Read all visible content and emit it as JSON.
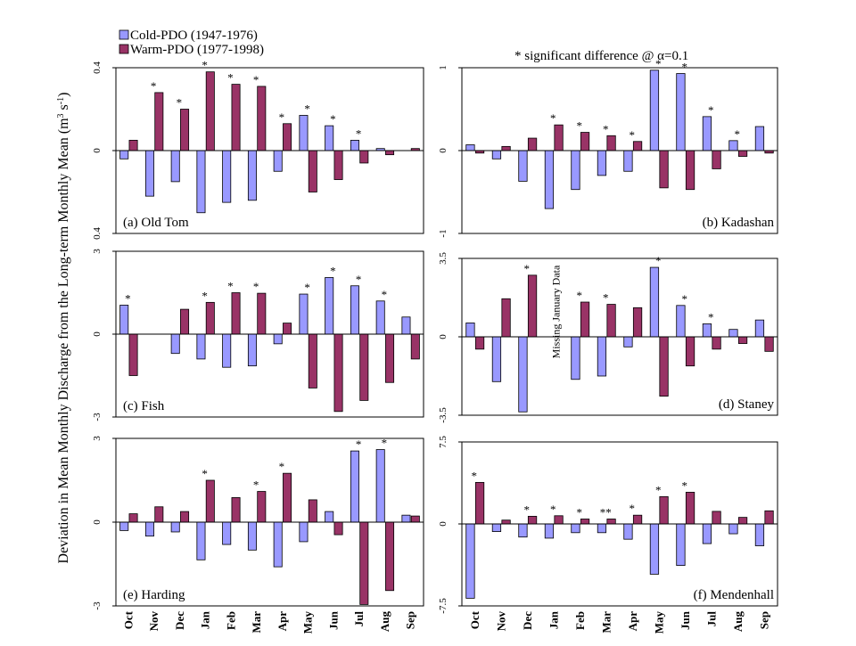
{
  "chart_data": {
    "type": "bar",
    "ylabel_main": "Deviation in Mean Monthly Discharge from the Long-term Monthly Mean (m",
    "ylabel_sup": "3",
    "ylabel_mid": " s",
    "ylabel_sup2": "-1",
    "ylabel_end": ")",
    "legend": [
      {
        "name": "Cold-PDO (1947-1976)",
        "color": "#9999ff"
      },
      {
        "name": "Warm-PDO (1977-1998)",
        "color": "#993366"
      }
    ],
    "significance_note": "* significant difference @ α=0.1",
    "months": [
      "Oct",
      "Nov",
      "Dec",
      "Jan",
      "Feb",
      "Mar",
      "Apr",
      "May",
      "Jun",
      "Jul",
      "Aug",
      "Sep"
    ],
    "panels": [
      {
        "label": "(a) Old Tom",
        "ylim": [
          -0.4,
          0.4
        ],
        "yticks": [
          "0.4",
          "0",
          "0.4"
        ],
        "cold": [
          -0.04,
          -0.22,
          -0.15,
          -0.3,
          -0.25,
          -0.24,
          -0.1,
          0.17,
          0.12,
          0.05,
          0.01,
          0.0
        ],
        "warm": [
          0.05,
          0.28,
          0.2,
          0.38,
          0.32,
          0.31,
          0.13,
          -0.2,
          -0.14,
          -0.06,
          -0.02,
          0.01
        ],
        "sig": [
          false,
          true,
          true,
          true,
          true,
          true,
          true,
          true,
          true,
          true,
          false,
          false
        ]
      },
      {
        "label": "(b) Kadashan",
        "ylim": [
          -1,
          1
        ],
        "yticks": [
          "1",
          "0",
          "-1"
        ],
        "cold": [
          0.07,
          -0.1,
          -0.37,
          -0.7,
          -0.47,
          -0.3,
          -0.25,
          0.97,
          0.93,
          0.41,
          0.12,
          0.29
        ],
        "warm": [
          -0.03,
          0.05,
          0.15,
          0.31,
          0.22,
          0.18,
          0.11,
          -0.45,
          -0.47,
          -0.22,
          -0.07,
          -0.03
        ],
        "sig": [
          false,
          false,
          false,
          true,
          true,
          true,
          true,
          true,
          true,
          true,
          true,
          false
        ]
      },
      {
        "label": "(c) Fish",
        "ylim": [
          -3,
          3
        ],
        "yticks": [
          "3",
          "0",
          "-3"
        ],
        "cold": [
          1.05,
          0.0,
          -0.7,
          -0.9,
          -1.2,
          -1.15,
          -0.35,
          1.45,
          2.05,
          1.75,
          1.2,
          0.62
        ],
        "warm": [
          -1.5,
          0.0,
          0.9,
          1.15,
          1.5,
          1.48,
          0.4,
          -1.95,
          -2.8,
          -2.4,
          -1.75,
          -0.9
        ],
        "sig": [
          true,
          false,
          false,
          true,
          true,
          true,
          false,
          true,
          true,
          true,
          true,
          false
        ]
      },
      {
        "label": "(d) Staney",
        "ylim": [
          -3.5,
          3.5
        ],
        "yticks": [
          "3.5",
          "0",
          "-3.5"
        ],
        "cold": [
          0.62,
          -2.0,
          -3.35,
          null,
          -1.9,
          -1.75,
          -0.45,
          3.1,
          1.4,
          0.58,
          0.33,
          0.75
        ],
        "warm": [
          -0.55,
          1.7,
          2.75,
          0.0,
          1.55,
          1.45,
          1.3,
          -2.65,
          -1.3,
          -0.55,
          -0.3,
          -0.65
        ],
        "sig": [
          false,
          false,
          true,
          false,
          true,
          true,
          false,
          true,
          true,
          true,
          false,
          false
        ],
        "annotation": "Missing January Data"
      },
      {
        "label": "(e) Harding",
        "ylim": [
          -3,
          3
        ],
        "yticks": [
          "3",
          "0",
          "-3"
        ],
        "cold": [
          -0.3,
          -0.5,
          -0.35,
          -1.35,
          -0.8,
          -1.0,
          -1.6,
          -0.7,
          0.38,
          2.55,
          2.6,
          0.25
        ],
        "warm": [
          0.3,
          0.55,
          0.38,
          1.5,
          0.88,
          1.1,
          1.75,
          0.8,
          -0.45,
          -2.95,
          -2.45,
          0.22
        ],
        "sig": [
          false,
          false,
          false,
          true,
          false,
          true,
          true,
          false,
          false,
          true,
          true,
          false
        ]
      },
      {
        "label": "(f) Mendenhall",
        "ylim": [
          -7.5,
          7.5
        ],
        "yticks": [
          "7.5",
          "0",
          "-7.5"
        ],
        "cold": [
          -6.8,
          -0.7,
          -1.2,
          -1.3,
          -0.8,
          -0.8,
          -1.4,
          -4.6,
          -3.8,
          -1.8,
          -0.9,
          -2.0
        ],
        "warm": [
          3.8,
          0.35,
          0.7,
          0.75,
          0.45,
          0.45,
          0.8,
          2.5,
          2.9,
          1.15,
          0.6,
          1.2
        ],
        "sig": [
          true,
          false,
          true,
          true,
          true,
          true,
          true,
          true,
          true,
          false,
          false,
          false
        ],
        "sig_double": [
          false,
          false,
          false,
          false,
          false,
          true,
          false,
          false,
          false,
          false,
          false,
          false
        ]
      }
    ]
  }
}
